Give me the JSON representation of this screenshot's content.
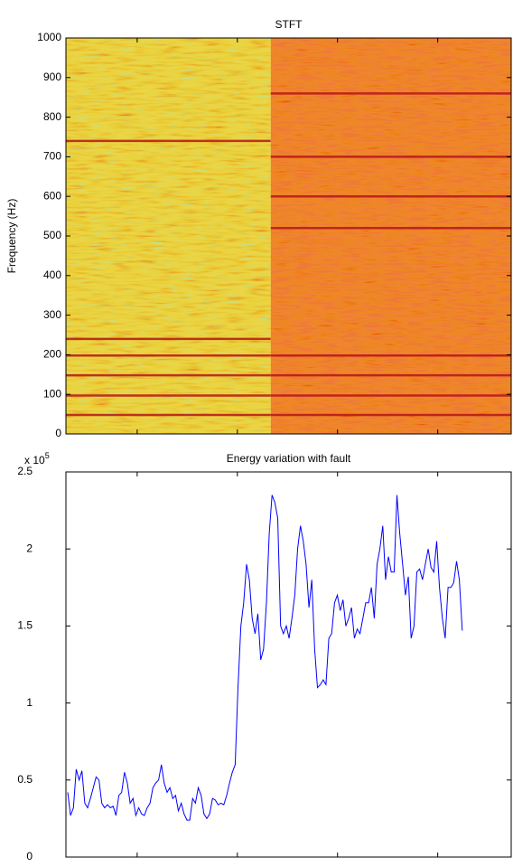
{
  "chart_data": [
    {
      "type": "spectrogram",
      "title": "STFT",
      "y_label": "Frequency (Hz)",
      "ylim": [
        0,
        1000
      ],
      "yticks": [
        0,
        100,
        200,
        300,
        400,
        500,
        600,
        700,
        800,
        900,
        1000
      ],
      "phases": [
        {
          "color": "#e9d545",
          "harmonics": [
            48,
            97,
            148,
            198,
            240,
            740
          ]
        },
        {
          "color": "#ef7a33",
          "harmonics": [
            48,
            97,
            148,
            198,
            520,
            600,
            700,
            860
          ]
        }
      ]
    },
    {
      "type": "line",
      "title": "Energy variation with fault",
      "y_scale_label": "x 10",
      "y_scale_exponent": "5",
      "ylim": [
        0,
        2.5
      ],
      "yticks": [
        0,
        0.5,
        1,
        1.5,
        2,
        2.5
      ],
      "color": "#0000ff",
      "values": [
        0.42,
        0.27,
        0.32,
        0.57,
        0.5,
        0.56,
        0.35,
        0.32,
        0.38,
        0.45,
        0.52,
        0.5,
        0.35,
        0.32,
        0.34,
        0.32,
        0.33,
        0.27,
        0.4,
        0.42,
        0.55,
        0.48,
        0.35,
        0.38,
        0.27,
        0.32,
        0.28,
        0.27,
        0.32,
        0.35,
        0.45,
        0.48,
        0.5,
        0.6,
        0.48,
        0.42,
        0.45,
        0.38,
        0.4,
        0.3,
        0.35,
        0.28,
        0.24,
        0.24,
        0.38,
        0.35,
        0.45,
        0.4,
        0.28,
        0.25,
        0.28,
        0.38,
        0.37,
        0.34,
        0.35,
        0.34,
        0.4,
        0.48,
        0.55,
        0.6,
        1.1,
        1.5,
        1.65,
        1.9,
        1.8,
        1.55,
        1.45,
        1.58,
        1.28,
        1.35,
        1.65,
        2.1,
        2.35,
        2.3,
        2.2,
        1.5,
        1.45,
        1.5,
        1.42,
        1.55,
        1.7,
        2.0,
        2.15,
        2.05,
        1.9,
        1.62,
        1.8,
        1.35,
        1.1,
        1.12,
        1.15,
        1.12,
        1.42,
        1.45,
        1.65,
        1.7,
        1.6,
        1.67,
        1.5,
        1.55,
        1.62,
        1.42,
        1.48,
        1.45,
        1.55,
        1.65,
        1.65,
        1.75,
        1.55,
        1.9,
        2.0,
        2.15,
        1.8,
        1.95,
        1.85,
        1.85,
        2.35,
        2.1,
        1.9,
        1.7,
        1.82,
        1.42,
        1.5,
        1.85,
        1.87,
        1.8,
        1.9,
        2.0,
        1.88,
        1.85,
        2.05,
        1.75,
        1.55,
        1.42,
        1.75,
        1.75,
        1.78,
        1.92,
        1.8,
        1.47
      ]
    }
  ]
}
